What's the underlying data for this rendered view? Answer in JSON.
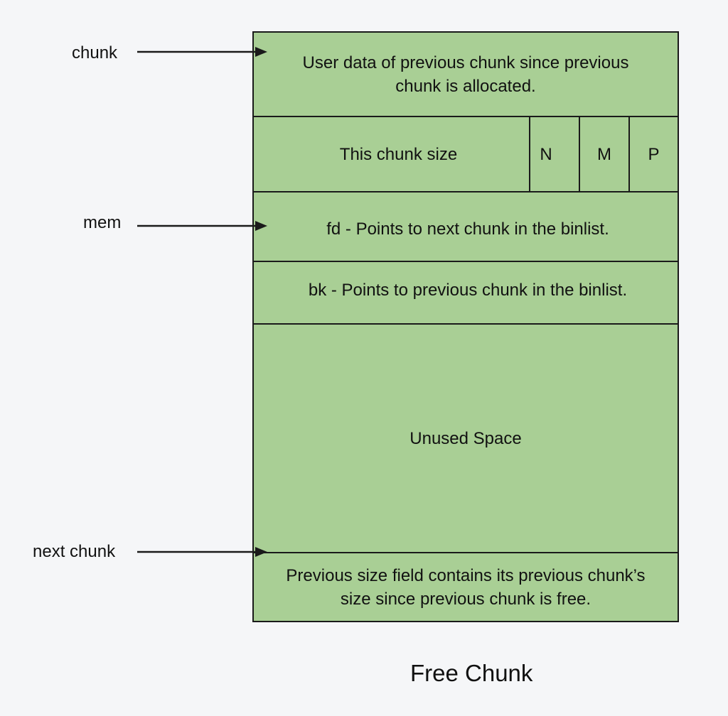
{
  "pointers": {
    "chunk": "chunk",
    "mem": "mem",
    "next_chunk": "next chunk"
  },
  "fields": {
    "prev_user_data": "User data of previous chunk since previous chunk is allocated.",
    "size": "This chunk size",
    "flag_n": "N",
    "flag_m": "M",
    "flag_p": "P",
    "fd": "fd - Points to next chunk in the binlist.",
    "bk": "bk - Points to previous chunk in the binlist.",
    "unused": "Unused Space",
    "next_prev_size": "Previous size field contains its previous chunk’s size since previous chunk is free."
  },
  "caption": "Free Chunk",
  "colors": {
    "background": "#f5f6f8",
    "field_fill": "#a9cf95",
    "stroke": "#1a1a1a"
  }
}
